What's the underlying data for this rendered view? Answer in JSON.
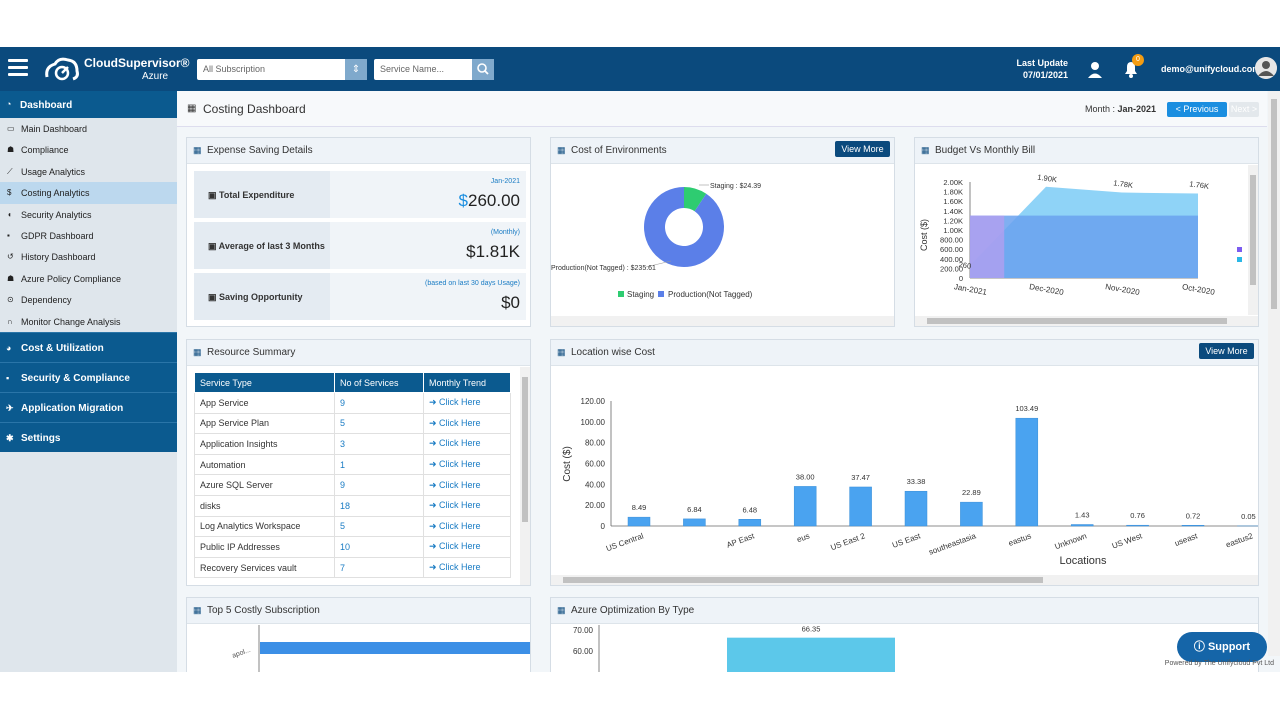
{
  "header": {
    "brand": "CloudSupervisor®",
    "brand_sub": "Azure",
    "subscription_value": "All Subscription",
    "service_placeholder": "Service Name...",
    "last_update_label": "Last Update",
    "last_update_date": "07/01/2021",
    "notif_count": "0",
    "user_email": "demo@unifycloud.com"
  },
  "sidebar": {
    "head": "Dashboard",
    "items": [
      {
        "label": "Main Dashboard",
        "icon": "monitor-icon",
        "glyph": "▭"
      },
      {
        "label": "Compliance",
        "icon": "users-icon",
        "glyph": "☗"
      },
      {
        "label": "Usage Analytics",
        "icon": "line-chart-icon",
        "glyph": "⟋"
      },
      {
        "label": "Costing Analytics",
        "icon": "dollar-icon",
        "glyph": "$"
      },
      {
        "label": "Security Analytics",
        "icon": "shield-icon",
        "glyph": "◖"
      },
      {
        "label": "GDPR Dashboard",
        "icon": "lock-icon",
        "glyph": "▪"
      },
      {
        "label": "History Dashboard",
        "icon": "history-icon",
        "glyph": "↺"
      },
      {
        "label": "Azure Policy Compliance",
        "icon": "users-icon",
        "glyph": "☗"
      },
      {
        "label": "Dependency",
        "icon": "dependency-icon",
        "glyph": "⊙"
      },
      {
        "label": "Monitor Change Analysis",
        "icon": "binoculars-icon",
        "glyph": "∩"
      }
    ],
    "sections": [
      {
        "label": "Cost & Utilization",
        "glyph": "◕"
      },
      {
        "label": "Security & Compliance",
        "glyph": "▪"
      },
      {
        "label": "Application Migration",
        "glyph": "✈"
      },
      {
        "label": "Settings",
        "glyph": "✱"
      }
    ]
  },
  "titlebar": {
    "title": "Costing Dashboard",
    "month_label": "Month : ",
    "month_value": "Jan-2021",
    "prev_label": "< Previous",
    "next_label": "Next >"
  },
  "expense": {
    "title": "Expense Saving Details",
    "rows": [
      {
        "label": "Total Expenditure",
        "small": "Jan-2021",
        "value_prefix": "$",
        "value": "260.00"
      },
      {
        "label": "Average of last 3 Months",
        "small": "(Monthly)",
        "value_prefix": "",
        "value": "$1.81K"
      },
      {
        "label": "Saving Opportunity",
        "small": "(based on last 30 days Usage)",
        "value_prefix": "",
        "value": "$0"
      }
    ]
  },
  "env": {
    "title": "Cost of Environments",
    "view_more": "View More",
    "label_staging": "Staging : $24.39",
    "label_prod": "Production(Not Tagged) : $235.61",
    "legend_staging": "Staging",
    "legend_prod": "Production(Not Tagged)"
  },
  "budget": {
    "title": "Budget Vs Monthly Bill"
  },
  "resource": {
    "title": "Resource Summary",
    "headers": [
      "Service Type",
      "No of Services",
      "Monthly Trend"
    ],
    "link_label": "Click Here",
    "rows": [
      {
        "type": "App Service",
        "count": "9"
      },
      {
        "type": "App Service Plan",
        "count": "5"
      },
      {
        "type": "Application Insights",
        "count": "3"
      },
      {
        "type": "Automation",
        "count": "1"
      },
      {
        "type": "Azure SQL Server",
        "count": "9"
      },
      {
        "type": "disks",
        "count": "18"
      },
      {
        "type": "Log Analytics Workspace",
        "count": "5"
      },
      {
        "type": "Public IP Addresses",
        "count": "10"
      },
      {
        "type": "Recovery Services vault",
        "count": "7"
      }
    ]
  },
  "location": {
    "title": "Location wise Cost",
    "view_more": "View More"
  },
  "top5": {
    "title": "Top 5 Costly Subscription",
    "ytick": "apol..."
  },
  "optim": {
    "title": "Azure Optimization By Type"
  },
  "support": {
    "label": "Support",
    "powered": "Powered by The Unifycloud Pvt Ltd"
  },
  "chart_data": [
    {
      "type": "pie",
      "title": "Cost of Environments",
      "slices": [
        {
          "name": "Staging",
          "value": 24.39,
          "color": "#2ecc71"
        },
        {
          "name": "Production(Not Tagged)",
          "value": 235.61,
          "color": "#5b7fe8"
        }
      ]
    },
    {
      "type": "area",
      "title": "Budget Vs Monthly Bill",
      "ylabel": "Cost ($)",
      "categories": [
        "Jan-2021",
        "Dec-2020",
        "Nov-2020",
        "Oct-2020"
      ],
      "yticks": [
        "0",
        "200.00",
        "400.00",
        "600.00",
        "800.00",
        "1.00K",
        "1.20K",
        "1.40K",
        "1.60K",
        "1.80K",
        "2.00K"
      ],
      "ylim": [
        0,
        2000
      ],
      "series": [
        {
          "values": [
            260,
            1900,
            1780,
            1760
          ],
          "labels": [
            "260",
            "1.90K",
            "1.78K",
            "1.76K"
          ],
          "color": "#8fd3f7"
        },
        {
          "values": [
            1300,
            1300,
            1300,
            1300
          ],
          "color": "#6aa1ee"
        }
      ]
    },
    {
      "type": "bar",
      "title": "Location wise Cost",
      "xlabel": "Locations",
      "ylabel": "Cost ($)",
      "ylim": [
        0,
        120
      ],
      "yticks": [
        "0",
        "20.00",
        "40.00",
        "60.00",
        "80.00",
        "100.00",
        "120.00"
      ],
      "categories": [
        "US Central",
        "",
        "AP East",
        "eus",
        "US East 2",
        "US East",
        "southeastasia",
        "eastus",
        "Unknown",
        "US West",
        "useast",
        "eastus2"
      ],
      "values": [
        8.49,
        6.84,
        6.48,
        38.0,
        37.47,
        33.38,
        22.89,
        103.49,
        1.43,
        0.76,
        0.72,
        0.05
      ],
      "labels": [
        "8.49",
        "6.84",
        "6.48",
        "38.00",
        "37.47",
        "33.38",
        "22.89",
        "103.49",
        "1.43",
        "0.76",
        "0.72",
        "0.05"
      ]
    },
    {
      "type": "bar",
      "title": "Azure Optimization By Type",
      "yticks": [
        "60.00",
        "70.00"
      ],
      "values": [
        66.35
      ],
      "labels": [
        "66.35"
      ]
    }
  ]
}
